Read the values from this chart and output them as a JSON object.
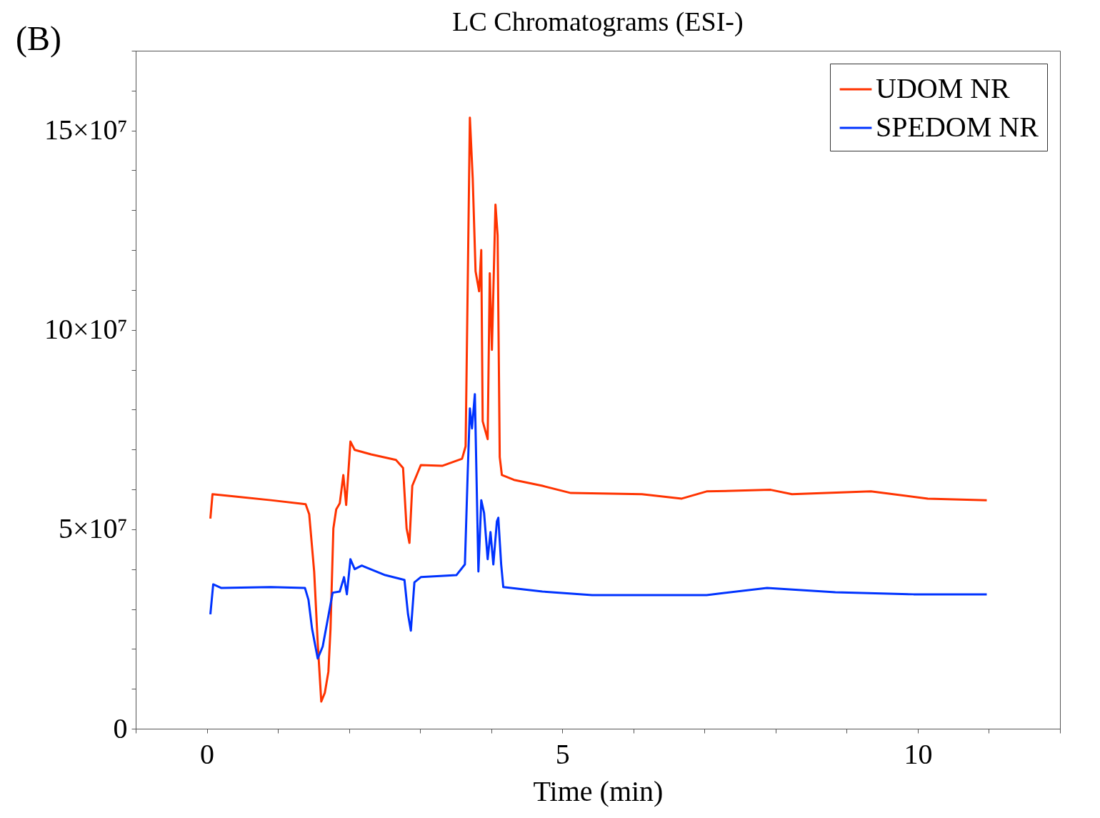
{
  "chart_data": {
    "type": "line",
    "title": "LC Chromatograms (ESI-)",
    "xlabel": "Time (min)",
    "annotations": [
      "(B)"
    ],
    "xlim": [
      -1,
      12
    ],
    "ylim": [
      0,
      170000000
    ],
    "xticks": [
      {
        "value": -1,
        "label": null
      },
      0,
      {
        "value": 1,
        "label": null
      },
      {
        "value": 2,
        "label": null
      },
      {
        "value": 3,
        "label": null
      },
      {
        "value": 4,
        "label": null
      },
      5,
      {
        "value": 6,
        "label": null
      },
      {
        "value": 7,
        "label": null
      },
      {
        "value": 8,
        "label": null
      },
      {
        "value": 9,
        "label": null
      },
      10,
      {
        "value": 11,
        "label": null
      },
      {
        "value": 12,
        "label": null
      }
    ],
    "yticks": [
      0,
      {
        "value": 10000000,
        "label": null
      },
      {
        "value": 20000000,
        "label": null
      },
      {
        "value": 30000000,
        "label": null
      },
      {
        "value": 40000000,
        "label": null
      },
      {
        "value": 50000000,
        "label": "5×10⁷"
      },
      {
        "value": 60000000,
        "label": null
      },
      {
        "value": 70000000,
        "label": null
      },
      {
        "value": 80000000,
        "label": null
      },
      {
        "value": 90000000,
        "label": null
      },
      {
        "value": 100000000,
        "label": "10×10⁷"
      },
      {
        "value": 110000000,
        "label": null
      },
      {
        "value": 120000000,
        "label": null
      },
      {
        "value": 130000000,
        "label": null
      },
      {
        "value": 140000000,
        "label": null
      },
      {
        "value": 150000000,
        "label": "15×10⁷"
      },
      {
        "value": 160000000,
        "label": null
      },
      {
        "value": 170000000,
        "label": null
      }
    ],
    "grid": false,
    "legend": "top right",
    "marker": "none",
    "line_style": "solid",
    "series": [
      {
        "name": "UDOM NR",
        "color": "#ff3300",
        "x": [
          0.05,
          0.08,
          0.4,
          0.9,
          1.39,
          1.44,
          1.51,
          1.56,
          1.61,
          1.66,
          1.71,
          1.74,
          1.78,
          1.82,
          1.87,
          1.92,
          1.96,
          2.02,
          2.08,
          2.31,
          2.66,
          2.76,
          2.81,
          2.85,
          2.89,
          3.01,
          3.31,
          3.59,
          3.64,
          3.7,
          3.74,
          3.78,
          3.83,
          3.86,
          3.88,
          3.95,
          3.98,
          4.01,
          4.06,
          4.09,
          4.12,
          4.15,
          4.32,
          4.72,
          5.12,
          6.12,
          6.68,
          7.03,
          7.93,
          8.23,
          9.34,
          10.14,
          10.97
        ],
        "values": [
          52700000,
          58800000,
          58200000,
          57300000,
          56300000,
          53800000,
          39400000,
          21500000,
          6800000,
          9000000,
          14300000,
          25100000,
          50200000,
          55000000,
          56500000,
          63600000,
          56100000,
          72000000,
          69900000,
          68800000,
          67400000,
          65400000,
          50200000,
          46600000,
          60900000,
          66100000,
          65900000,
          67700000,
          70800000,
          153200000,
          138000000,
          114700000,
          109700000,
          120000000,
          77100000,
          72600000,
          114200000,
          95000000,
          131400000,
          123700000,
          68100000,
          63600000,
          62400000,
          60900000,
          59100000,
          58800000,
          57700000,
          59500000,
          59900000,
          58800000,
          59500000,
          57700000,
          57300000
        ]
      },
      {
        "name": "SPEDOM NR",
        "color": "#0033ff",
        "x": [
          0.05,
          0.09,
          0.2,
          0.9,
          1.38,
          1.43,
          1.48,
          1.56,
          1.63,
          1.71,
          1.77,
          1.87,
          1.93,
          1.97,
          2.02,
          2.08,
          2.18,
          2.51,
          2.78,
          2.83,
          2.87,
          2.92,
          3.01,
          3.51,
          3.63,
          3.67,
          3.7,
          3.73,
          3.77,
          3.8,
          3.82,
          3.86,
          3.9,
          3.95,
          3.99,
          4.03,
          4.08,
          4.1,
          4.14,
          4.17,
          4.72,
          5.42,
          6.48,
          7.03,
          7.88,
          8.84,
          9.94,
          10.97
        ],
        "values": [
          28700000,
          36200000,
          35300000,
          35500000,
          35300000,
          32300000,
          25100000,
          17600000,
          20600000,
          28300000,
          34100000,
          34400000,
          38000000,
          33700000,
          42500000,
          40000000,
          40900000,
          38500000,
          37300000,
          28700000,
          24600000,
          36700000,
          38000000,
          38500000,
          41200000,
          64500000,
          80300000,
          75300000,
          83900000,
          57300000,
          39400000,
          57300000,
          54100000,
          42500000,
          49300000,
          41200000,
          52000000,
          52900000,
          41200000,
          35500000,
          34400000,
          33500000,
          33500000,
          33500000,
          35300000,
          34200000,
          33700000,
          33700000
        ]
      }
    ]
  }
}
